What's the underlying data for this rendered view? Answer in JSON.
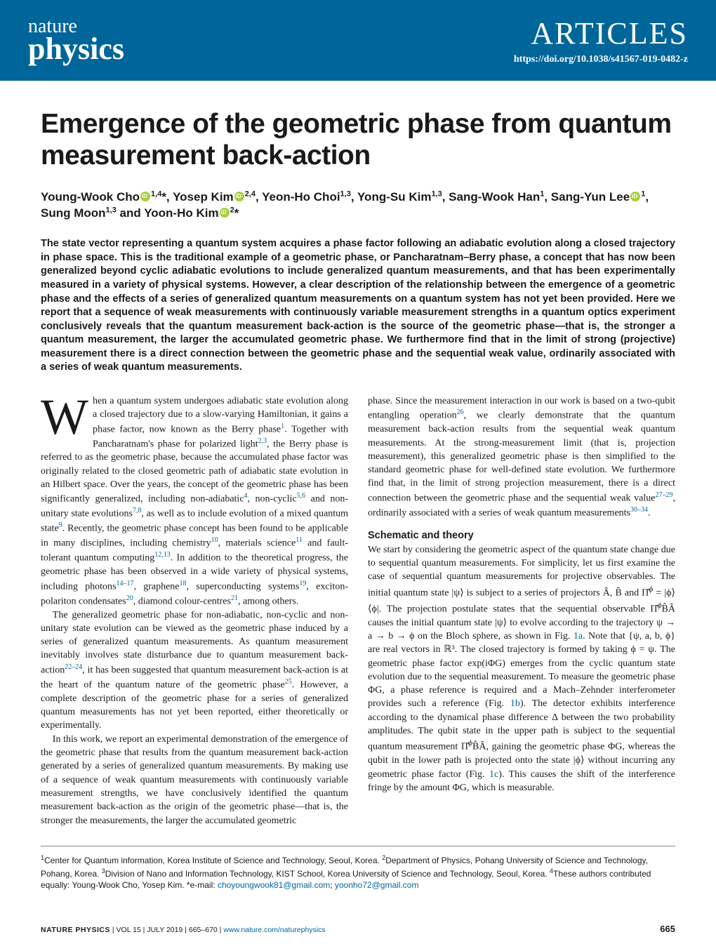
{
  "header": {
    "journal_top": "nature",
    "journal_bottom": "physics",
    "section_label": "ARTICLES",
    "doi": "https://doi.org/10.1038/s41567-019-0482-z",
    "bg_color": "#006699",
    "text_color": "#ffffff"
  },
  "title": "Emergence of the geometric phase from quantum measurement back-action",
  "authors_line1": "Young-Wook Cho",
  "authors_sup1": "1,4",
  "authors_star1": "*, ",
  "authors_line2": "Yosep Kim",
  "authors_sup2": "2,4",
  "authors_line3": ", Yeon-Ho Choi",
  "authors_sup3": "1,3",
  "authors_line4": ", Yong-Su Kim",
  "authors_sup4": "1,3",
  "authors_line5": ", Sang-Wook Han",
  "authors_sup5": "1",
  "authors_line6": ", Sang-Yun Lee",
  "authors_sup6": "1",
  "authors_line7": ", Sung Moon",
  "authors_sup7": "1,3",
  "authors_line8": " and Yoon-Ho Kim",
  "authors_sup8": "2",
  "authors_star2": "*",
  "abstract": "The state vector representing a quantum system acquires a phase factor following an adiabatic evolution along a closed trajectory in phase space. This is the traditional example of a geometric phase, or Pancharatnam–Berry phase, a concept that has now been generalized beyond cyclic adiabatic evolutions to include generalized quantum measurements, and that has been experimentally measured in a variety of physical systems. However, a clear description of the relationship between the emergence of a geometric phase and the effects of a series of generalized quantum measurements on a quantum system has not yet been provided. Here we report that a sequence of weak measurements with continuously variable measurement strengths in a quantum optics experiment conclusively reveals that the quantum measurement back-action is the source of the geometric phase—that is, the stronger a quantum measurement, the larger the accumulated geometric phase. We furthermore find that in the limit of strong (projective) measurement there is a direct connection between the geometric phase and the sequential weak value, ordinarily associated with a series of weak quantum measurements.",
  "body": {
    "p1_first": "W",
    "p1_rest": "hen a quantum system undergoes adiabatic state evolution along a closed trajectory due to a slow-varying Hamiltonian, it gains a phase factor, now known as the Berry phase",
    "p1_ref1": "1",
    "p1_cont1": ". Together with Pancharatnam's phase for polarized light",
    "p1_ref2": "2,3",
    "p1_cont2": ", the Berry phase is referred to as the geometric phase, because the accumulated phase factor was originally related to the closed geometric path of adiabatic state evolution in an Hilbert space. Over the years, the concept of the geometric phase has been significantly generalized, including non-adiabatic",
    "p1_ref3": "4",
    "p1_cont3": ", non-cyclic",
    "p1_ref4": "5,6",
    "p1_cont4": " and non-unitary state evolutions",
    "p1_ref5": "7,8",
    "p1_cont5": ", as well as to include evolution of a mixed quantum state",
    "p1_ref6": "9",
    "p1_cont6": ". Recently, the geometric phase concept has been found to be applicable in many disciplines, including chemistry",
    "p1_ref7": "10",
    "p1_cont7": ", materials science",
    "p1_ref8": "11",
    "p1_cont8": " and fault-tolerant quantum computing",
    "p1_ref9": "12,13",
    "p1_cont9": ". In addition to the theoretical progress, the geometric phase has been observed in a wide variety of physical systems, including photons",
    "p1_ref10": "14–17",
    "p1_cont10": ", graphene",
    "p1_ref11": "18",
    "p1_cont11": ", superconducting systems",
    "p1_ref12": "19",
    "p1_cont12": ", exciton-polariton condensates",
    "p1_ref13": "20",
    "p1_cont13": ", diamond colour-centres",
    "p1_ref14": "21",
    "p1_cont14": ", among others.",
    "p2": "The generalized geometric phase for non-adiabatic, non-cyclic and non-unitary state evolution can be viewed as the geometric phase induced by a series of generalized quantum measurements. As quantum measurement inevitably involves state disturbance due to quantum measurement back-action",
    "p2_ref1": "22–24",
    "p2_cont1": ", it has been suggested that quantum measurement back-action is at the heart of the quantum nature of the geometric phase",
    "p2_ref2": "25",
    "p2_cont2": ". However, a complete description of the geometric phase for a series of generalized quantum measurements has not yet been reported, either theoretically or experimentally.",
    "p3": "In this work, we report an experimental demonstration of the emergence of the geometric phase that results from the quantum measurement back-action generated by a series of generalized quantum measurements. By making use of a sequence of weak quantum measurements with continuously variable measurement strengths, we have conclusively identified the quantum measurement back-action as the origin of the geometric phase—that is, the stronger the measurements, the larger the accumulated geometric",
    "p4_a": "phase. Since the measurement interaction in our work is based on a two-qubit entangling operation",
    "p4_ref1": "26",
    "p4_b": ", we clearly demonstrate that the quantum measurement back-action results from the sequential weak quantum measurements. At the strong-measurement limit (that is, projection measurement), this generalized geometric phase is then simplified to the standard geometric phase for well-defined state evolution. We furthermore find that, in the limit of strong projection measurement, there is a direct connection between the geometric phase and the sequential weak value",
    "p4_ref2": "27–29",
    "p4_c": ", ordinarily associated with a series of weak quantum measurements",
    "p4_ref3": "30–34",
    "p4_d": ".",
    "sec1_head": "Schematic and theory",
    "p5_a": "We start by considering the geometric aspect of the quantum state change due to sequential quantum measurements. For simplicity, let us first examine the case of sequential quantum measurements for projective observables. The initial quantum state |ψ⟩ is subject to a series of projectors Â, B̂ and Π̂",
    "p5_sup1": "ϕ",
    "p5_b": " = |ϕ⟩⟨ϕ|. The projection postulate states that the sequential observable Π̂",
    "p5_sup2": "ϕ",
    "p5_c": "B̂Â causes the initial quantum state |ψ⟩ to evolve according to the trajectory ψ → a → b → ϕ on the Bloch sphere, as shown in Fig. ",
    "p5_fig1": "1a",
    "p5_d": ". Note that {ψ, a, b, ϕ} are real vectors in ℝ³. The closed trajectory is formed by taking ϕ = ψ. The geometric phase factor exp(iΦG) emerges from the cyclic quantum state evolution due to the sequential measurement. To measure the geometric phase ΦG, a phase reference is required and a Mach–Zehnder interferometer provides such a reference (Fig. ",
    "p5_fig2": "1b",
    "p5_e": "). The detector exhibits interference according to the dynamical phase difference Δ between the two probability amplitudes. The qubit state in the upper path is subject to the sequential quantum measurement Π̂",
    "p5_sup3": "ϕ",
    "p5_f": "B̂Â, gaining the geometric phase ΦG, whereas the qubit in the lower path is projected onto the state |ϕ⟩ without incurring any geometric phase factor (Fig. ",
    "p5_fig3": "1c",
    "p5_g": "). This causes the shift of the interference fringe by the amount ΦG, which is measurable."
  },
  "affiliations": {
    "a1_sup": "1",
    "a1": "Center for Quantum information, Korea Institute of Science and Technology, Seoul, Korea. ",
    "a2_sup": "2",
    "a2": "Department of Physics, Pohang University of Science and Technology, Pohang, Korea. ",
    "a3_sup": "3",
    "a3": "Division of Nano and Information Technology, KIST School, Korea University of Science and Technology, Seoul, Korea. ",
    "a4_sup": "4",
    "a4": "These authors contributed equally: Young-Wook Cho, Yosep Kim. *e-mail: ",
    "email1": "choyoungwook81@gmail.com",
    "sep": "; ",
    "email2": "yoonho72@gmail.com"
  },
  "footer": {
    "journal": "NATURE PHYSICS",
    "vol_info": " | VOL 15 | JULY 2019 | 665–670 | ",
    "url": "www.nature.com/naturephysics",
    "page": "665"
  }
}
